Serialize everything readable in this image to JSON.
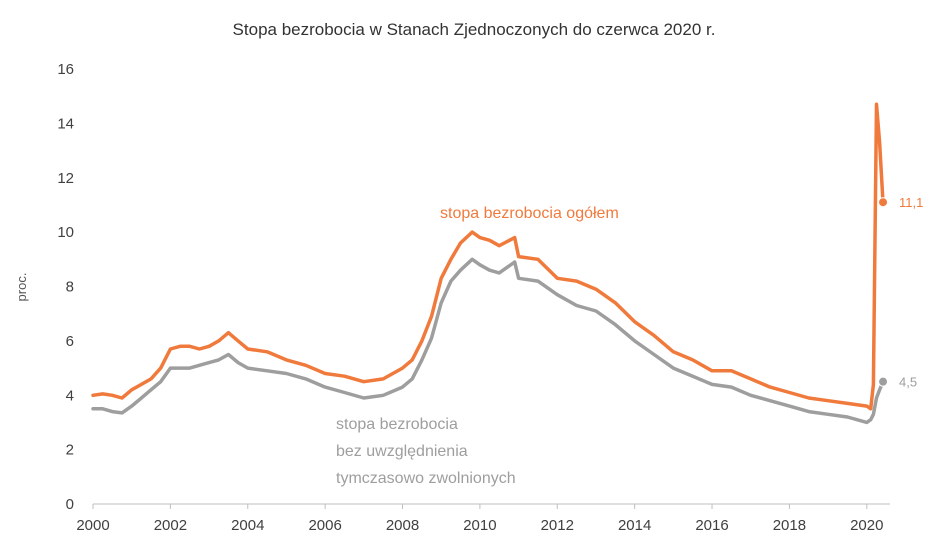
{
  "chart_data": {
    "type": "line",
    "title": "Stopa bezrobocia  w Stanach Zjednoczonych  do czerwca  2020 r.",
    "ylabel": "proc.",
    "xlabel": "",
    "xlim": [
      2000,
      2020.6
    ],
    "ylim": [
      0,
      16
    ],
    "x_ticks": [
      "2000",
      "2002",
      "2004",
      "2006",
      "2008",
      "2010",
      "2012",
      "2014",
      "2016",
      "2018",
      "2020"
    ],
    "y_ticks": [
      "0",
      "2",
      "4",
      "6",
      "8",
      "10",
      "12",
      "14",
      "16"
    ],
    "grid": false,
    "series": [
      {
        "name": "stopa bezrobocia  ogółem",
        "color": "#f07a3c",
        "end_label": "11,1",
        "points": [
          [
            2000.0,
            4.0
          ],
          [
            2000.25,
            4.05
          ],
          [
            2000.5,
            4.0
          ],
          [
            2000.75,
            3.9
          ],
          [
            2001.0,
            4.2
          ],
          [
            2001.25,
            4.4
          ],
          [
            2001.5,
            4.6
          ],
          [
            2001.75,
            5.0
          ],
          [
            2002.0,
            5.7
          ],
          [
            2002.25,
            5.8
          ],
          [
            2002.5,
            5.8
          ],
          [
            2002.75,
            5.7
          ],
          [
            2003.0,
            5.8
          ],
          [
            2003.25,
            6.0
          ],
          [
            2003.5,
            6.3
          ],
          [
            2003.75,
            6.0
          ],
          [
            2004.0,
            5.7
          ],
          [
            2004.5,
            5.6
          ],
          [
            2005.0,
            5.3
          ],
          [
            2005.5,
            5.1
          ],
          [
            2006.0,
            4.8
          ],
          [
            2006.5,
            4.7
          ],
          [
            2007.0,
            4.5
          ],
          [
            2007.5,
            4.6
          ],
          [
            2008.0,
            5.0
          ],
          [
            2008.25,
            5.3
          ],
          [
            2008.5,
            6.0
          ],
          [
            2008.75,
            6.9
          ],
          [
            2009.0,
            8.3
          ],
          [
            2009.25,
            9.0
          ],
          [
            2009.5,
            9.6
          ],
          [
            2009.8,
            10.0
          ],
          [
            2010.0,
            9.8
          ],
          [
            2010.25,
            9.7
          ],
          [
            2010.5,
            9.5
          ],
          [
            2010.9,
            9.8
          ],
          [
            2011.0,
            9.1
          ],
          [
            2011.5,
            9.0
          ],
          [
            2012.0,
            8.3
          ],
          [
            2012.5,
            8.2
          ],
          [
            2013.0,
            7.9
          ],
          [
            2013.5,
            7.4
          ],
          [
            2014.0,
            6.7
          ],
          [
            2014.5,
            6.2
          ],
          [
            2015.0,
            5.6
          ],
          [
            2015.5,
            5.3
          ],
          [
            2016.0,
            4.9
          ],
          [
            2016.5,
            4.9
          ],
          [
            2017.0,
            4.6
          ],
          [
            2017.5,
            4.3
          ],
          [
            2018.0,
            4.1
          ],
          [
            2018.5,
            3.9
          ],
          [
            2019.0,
            3.8
          ],
          [
            2019.5,
            3.7
          ],
          [
            2020.0,
            3.6
          ],
          [
            2020.1,
            3.5
          ],
          [
            2020.17,
            4.4
          ],
          [
            2020.25,
            14.7
          ],
          [
            2020.33,
            13.3
          ],
          [
            2020.42,
            11.1
          ]
        ]
      },
      {
        "name": "stopa bezrobocia\nbez uwzględnienia\ntymczasowo zwolnionych",
        "color": "#9e9e9e",
        "end_label": "4,5",
        "points": [
          [
            2000.0,
            3.5
          ],
          [
            2000.25,
            3.5
          ],
          [
            2000.5,
            3.4
          ],
          [
            2000.75,
            3.35
          ],
          [
            2001.0,
            3.6
          ],
          [
            2001.25,
            3.9
          ],
          [
            2001.5,
            4.2
          ],
          [
            2001.75,
            4.5
          ],
          [
            2002.0,
            5.0
          ],
          [
            2002.25,
            5.0
          ],
          [
            2002.5,
            5.0
          ],
          [
            2002.75,
            5.1
          ],
          [
            2003.0,
            5.2
          ],
          [
            2003.25,
            5.3
          ],
          [
            2003.5,
            5.5
          ],
          [
            2003.75,
            5.2
          ],
          [
            2004.0,
            5.0
          ],
          [
            2004.5,
            4.9
          ],
          [
            2005.0,
            4.8
          ],
          [
            2005.5,
            4.6
          ],
          [
            2006.0,
            4.3
          ],
          [
            2006.5,
            4.1
          ],
          [
            2007.0,
            3.9
          ],
          [
            2007.5,
            4.0
          ],
          [
            2008.0,
            4.3
          ],
          [
            2008.25,
            4.6
          ],
          [
            2008.5,
            5.3
          ],
          [
            2008.75,
            6.1
          ],
          [
            2009.0,
            7.4
          ],
          [
            2009.25,
            8.2
          ],
          [
            2009.5,
            8.6
          ],
          [
            2009.8,
            9.0
          ],
          [
            2010.0,
            8.8
          ],
          [
            2010.25,
            8.6
          ],
          [
            2010.5,
            8.5
          ],
          [
            2010.9,
            8.9
          ],
          [
            2011.0,
            8.3
          ],
          [
            2011.5,
            8.2
          ],
          [
            2012.0,
            7.7
          ],
          [
            2012.5,
            7.3
          ],
          [
            2013.0,
            7.1
          ],
          [
            2013.5,
            6.6
          ],
          [
            2014.0,
            6.0
          ],
          [
            2014.5,
            5.5
          ],
          [
            2015.0,
            5.0
          ],
          [
            2015.5,
            4.7
          ],
          [
            2016.0,
            4.4
          ],
          [
            2016.5,
            4.3
          ],
          [
            2017.0,
            4.0
          ],
          [
            2017.5,
            3.8
          ],
          [
            2018.0,
            3.6
          ],
          [
            2018.5,
            3.4
          ],
          [
            2019.0,
            3.3
          ],
          [
            2019.5,
            3.2
          ],
          [
            2020.0,
            3.0
          ],
          [
            2020.1,
            3.1
          ],
          [
            2020.17,
            3.3
          ],
          [
            2020.25,
            3.9
          ],
          [
            2020.33,
            4.2
          ],
          [
            2020.42,
            4.5
          ]
        ]
      }
    ]
  }
}
